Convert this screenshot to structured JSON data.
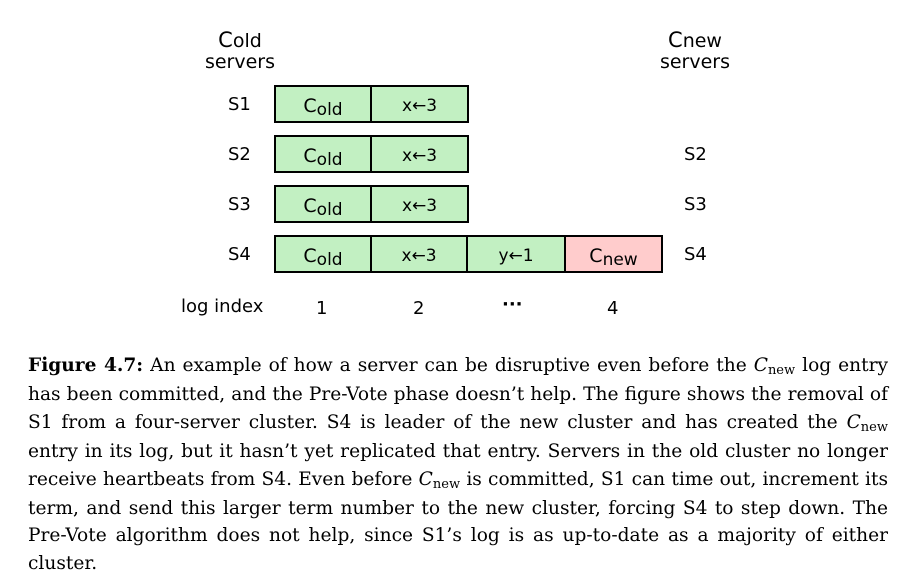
{
  "headers": {
    "old": {
      "symbol": "C",
      "subscript": "old",
      "line2": "servers"
    },
    "new": {
      "symbol": "C",
      "subscript": "new",
      "line2": "servers"
    }
  },
  "old_servers": [
    "S1",
    "S2",
    "S3",
    "S4"
  ],
  "new_servers": [
    "S2",
    "S3",
    "S4"
  ],
  "logs": {
    "S1": [
      {
        "sym": "C",
        "sub": "old"
      },
      {
        "text": "x←3"
      }
    ],
    "S2": [
      {
        "sym": "C",
        "sub": "old"
      },
      {
        "text": "x←3"
      }
    ],
    "S3": [
      {
        "sym": "C",
        "sub": "old"
      },
      {
        "text": "x←3"
      }
    ],
    "S4": [
      {
        "sym": "C",
        "sub": "old"
      },
      {
        "text": "x←3"
      },
      {
        "text": "y←1"
      },
      {
        "sym": "C",
        "sub": "new"
      }
    ]
  },
  "log_index_label": "log index",
  "log_indices": [
    "1",
    "2",
    "···",
    "4"
  ],
  "colors": {
    "committed_entry": "#c2f0c2",
    "new_config_entry": "#ffcccc"
  },
  "caption": {
    "label": "Figure 4.7:",
    "parts": [
      " An example of how a server can be disruptive even before the ",
      "C",
      "new",
      " log entry has been committed, and the Pre-Vote phase doesn’t help. The figure shows the removal of S1 from a four-server cluster. S4 is leader of the new cluster and has created the ",
      "C",
      "new",
      " entry in its log, but it hasn’t yet replicated that entry. Servers in the old cluster no longer receive heartbeats from S4. Even before ",
      "C",
      "new",
      " is committed, S1 can time out, increment its term, and send this larger term number to the new cluster, forcing S4 to step down. The Pre-Vote algorithm does not help, since S1’s log is as up-to-date as a majority of either cluster."
    ]
  }
}
